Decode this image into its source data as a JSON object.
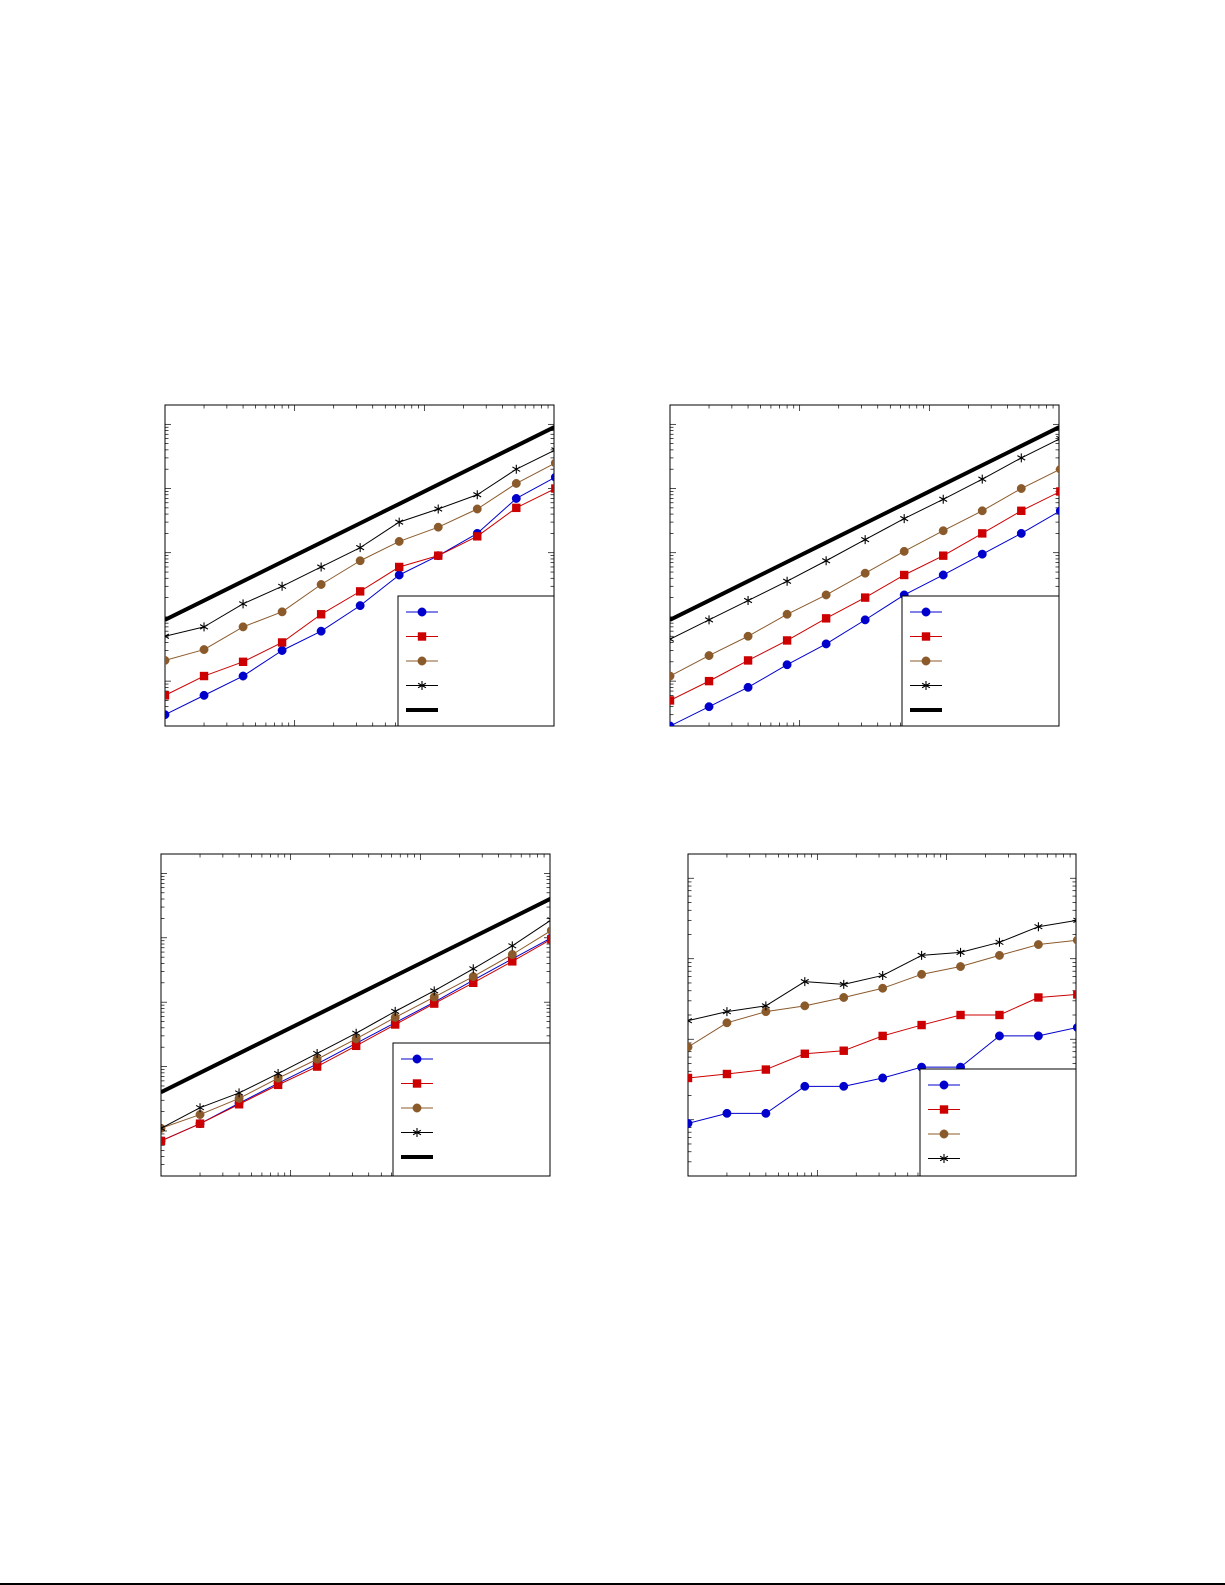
{
  "figure": {
    "background": "#ffffff"
  },
  "chart_data": [
    {
      "id": "panel-top-left",
      "type": "line",
      "xscale": "log",
      "yscale": "log",
      "xlim": [
        1,
        1000
      ],
      "ylim": [
        2e-05,
        2
      ],
      "x": [
        1,
        2,
        4,
        8,
        16,
        32,
        64,
        128,
        256,
        512,
        1024
      ],
      "grid": false,
      "legend_placement": "bottom-right",
      "series": [
        {
          "color": "#0000cc",
          "marker": "circle",
          "values": [
            3e-05,
            6e-05,
            0.00012,
            0.0003,
            0.0006,
            0.0015,
            0.0045,
            0.009,
            0.02,
            0.07,
            0.15
          ]
        },
        {
          "color": "#cc0000",
          "marker": "square",
          "values": [
            6e-05,
            0.00012,
            0.0002,
            0.0004,
            0.0011,
            0.0025,
            0.006,
            0.009,
            0.018,
            0.05,
            0.1
          ]
        },
        {
          "color": "#8b5a2b",
          "marker": "circle",
          "values": [
            0.00021,
            0.00031,
            0.0007,
            0.0012,
            0.0032,
            0.0075,
            0.015,
            0.025,
            0.048,
            0.12,
            0.25
          ]
        },
        {
          "color": "#000000",
          "marker": "star",
          "values": [
            0.0005,
            0.0007,
            0.0016,
            0.003,
            0.006,
            0.012,
            0.03,
            0.048,
            0.08,
            0.2,
            0.4
          ]
        },
        {
          "color": "#000000",
          "marker": "none",
          "line_width": 4,
          "values": [
            0.0009,
            0.0018,
            0.0036,
            0.0072,
            0.0144,
            0.0288,
            0.0576,
            0.1152,
            0.2304,
            0.4608,
            0.9216
          ]
        }
      ]
    },
    {
      "id": "panel-top-right",
      "type": "line",
      "xscale": "log",
      "yscale": "log",
      "xlim": [
        1,
        1000
      ],
      "ylim": [
        2e-05,
        2
      ],
      "x": [
        1,
        2,
        4,
        8,
        16,
        32,
        64,
        128,
        256,
        512,
        1024
      ],
      "grid": false,
      "legend_placement": "bottom-right",
      "series": [
        {
          "color": "#0000cc",
          "marker": "circle",
          "values": [
            2e-05,
            4e-05,
            8e-05,
            0.00018,
            0.00038,
            0.0009,
            0.0022,
            0.0045,
            0.0095,
            0.02,
            0.045
          ]
        },
        {
          "color": "#cc0000",
          "marker": "square",
          "values": [
            5e-05,
            0.0001,
            0.00021,
            0.00043,
            0.00095,
            0.002,
            0.0045,
            0.009,
            0.02,
            0.045,
            0.09
          ]
        },
        {
          "color": "#8b5a2b",
          "marker": "circle",
          "values": [
            0.00012,
            0.00025,
            0.0005,
            0.0011,
            0.0022,
            0.0048,
            0.0105,
            0.022,
            0.045,
            0.1,
            0.2
          ]
        },
        {
          "color": "#000000",
          "marker": "star",
          "values": [
            0.00045,
            0.0009,
            0.0018,
            0.0036,
            0.0075,
            0.016,
            0.034,
            0.068,
            0.14,
            0.3,
            0.6
          ]
        },
        {
          "color": "#000000",
          "marker": "none",
          "line_width": 4,
          "values": [
            0.0009,
            0.0018,
            0.0036,
            0.0072,
            0.0144,
            0.0288,
            0.0576,
            0.1152,
            0.2304,
            0.4608,
            0.9216
          ]
        }
      ]
    },
    {
      "id": "panel-bottom-left",
      "type": "line",
      "xscale": "log",
      "yscale": "log",
      "xlim": [
        1,
        1000
      ],
      "ylim": [
        2e-05,
        2
      ],
      "x": [
        1,
        2,
        4,
        8,
        16,
        32,
        64,
        128,
        256,
        512,
        1024
      ],
      "grid": false,
      "legend_placement": "bottom-right",
      "series": [
        {
          "color": "#0000cc",
          "marker": "circle",
          "values": [
            7e-05,
            0.00013,
            0.00027,
            0.00055,
            0.0011,
            0.0023,
            0.0048,
            0.01,
            0.022,
            0.047,
            0.1
          ]
        },
        {
          "color": "#cc0000",
          "marker": "square",
          "values": [
            7e-05,
            0.00013,
            0.00026,
            0.00052,
            0.001,
            0.0021,
            0.0045,
            0.0095,
            0.02,
            0.043,
            0.095
          ]
        },
        {
          "color": "#8b5a2b",
          "marker": "circle",
          "values": [
            0.00011,
            0.00018,
            0.00032,
            0.00066,
            0.0013,
            0.0027,
            0.0058,
            0.012,
            0.025,
            0.055,
            0.13
          ]
        },
        {
          "color": "#000000",
          "marker": "star",
          "values": [
            0.00011,
            0.00023,
            0.00039,
            0.00078,
            0.0016,
            0.0033,
            0.0072,
            0.015,
            0.033,
            0.075,
            0.19
          ]
        },
        {
          "color": "#000000",
          "marker": "none",
          "line_width": 4,
          "values": [
            0.0004,
            0.0008,
            0.0016,
            0.0032,
            0.0064,
            0.0128,
            0.0256,
            0.0512,
            0.1024,
            0.2048,
            0.4096
          ]
        }
      ]
    },
    {
      "id": "panel-bottom-right",
      "type": "line",
      "xscale": "log",
      "yscale": "log",
      "xlim": [
        1,
        1000
      ],
      "ylim": [
        0.002,
        20
      ],
      "x": [
        1,
        2,
        4,
        8,
        16,
        32,
        64,
        128,
        256,
        512,
        1024
      ],
      "grid": false,
      "legend_placement": "bottom-right",
      "series": [
        {
          "color": "#0000cc",
          "marker": "circle",
          "x": [
            1,
            2,
            4,
            8,
            16,
            32,
            64,
            128,
            256,
            512,
            1024,
            2048
          ],
          "values": [
            0.009,
            0.012,
            0.012,
            0.026,
            0.026,
            0.033,
            0.045,
            0.045,
            0.11,
            0.11,
            0.14,
            0.14
          ]
        },
        {
          "color": "#cc0000",
          "marker": "square",
          "x": [
            1,
            2,
            4,
            8,
            16,
            32,
            64,
            128,
            256,
            512,
            1024,
            2048
          ],
          "values": [
            0.033,
            0.037,
            0.042,
            0.066,
            0.072,
            0.11,
            0.15,
            0.2,
            0.2,
            0.33,
            0.36,
            0.38
          ]
        },
        {
          "color": "#8b5a2b",
          "marker": "circle",
          "x": [
            1,
            2,
            4,
            8,
            16,
            32,
            64,
            128,
            256,
            512,
            1024,
            2048
          ],
          "values": [
            0.08,
            0.16,
            0.22,
            0.26,
            0.33,
            0.43,
            0.64,
            0.8,
            1.1,
            1.5,
            1.7,
            1.8
          ]
        },
        {
          "color": "#000000",
          "marker": "star",
          "x": [
            1,
            2,
            4,
            8,
            16,
            32,
            64,
            128,
            256,
            512,
            1024,
            2048
          ],
          "values": [
            0.17,
            0.22,
            0.26,
            0.52,
            0.48,
            0.62,
            1.1,
            1.2,
            1.6,
            2.5,
            3.0,
            3.3
          ]
        }
      ]
    }
  ]
}
